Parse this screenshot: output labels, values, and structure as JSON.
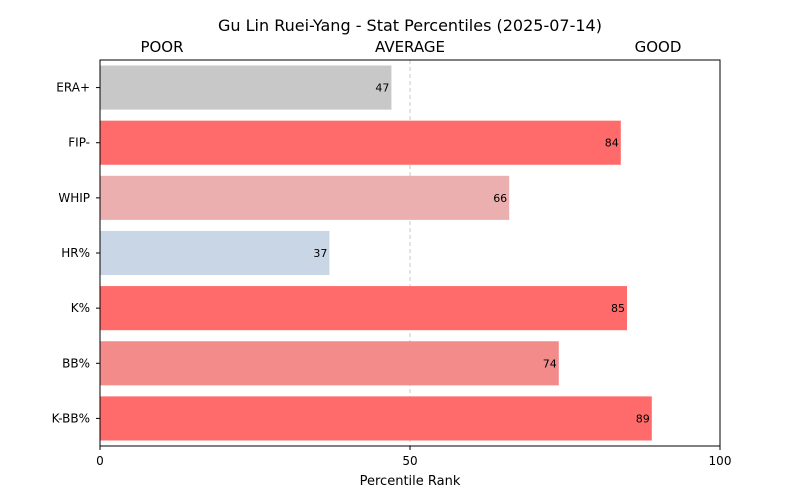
{
  "chart_data": {
    "type": "bar",
    "orientation": "horizontal",
    "title": "Gu Lin Ruei-Yang - Stat Percentiles (2025-07-14)",
    "xlabel": "Percentile Rank",
    "ylabel": "",
    "xlim": [
      0,
      100
    ],
    "xticks": [
      "0",
      "50",
      "100"
    ],
    "categories": [
      "ERA+",
      "FIP-",
      "WHIP",
      "HR%",
      "K%",
      "BB%",
      "K-BB%"
    ],
    "values": [
      47,
      84,
      66,
      37,
      85,
      74,
      89
    ],
    "bar_colors": [
      "#c8c8c8",
      "#ff6b6b",
      "#ecafaf",
      "#c8d6e6",
      "#ff6b6b",
      "#f38b8b",
      "#ff6b6b"
    ],
    "reference_line": {
      "x": 50,
      "style": "dashed",
      "color": "#c8c8c8"
    },
    "zone_labels": [
      {
        "text": "POOR",
        "at": 10
      },
      {
        "text": "AVERAGE",
        "at": 50
      },
      {
        "text": "GOOD",
        "at": 90
      }
    ],
    "grid": false,
    "legend": "none"
  }
}
